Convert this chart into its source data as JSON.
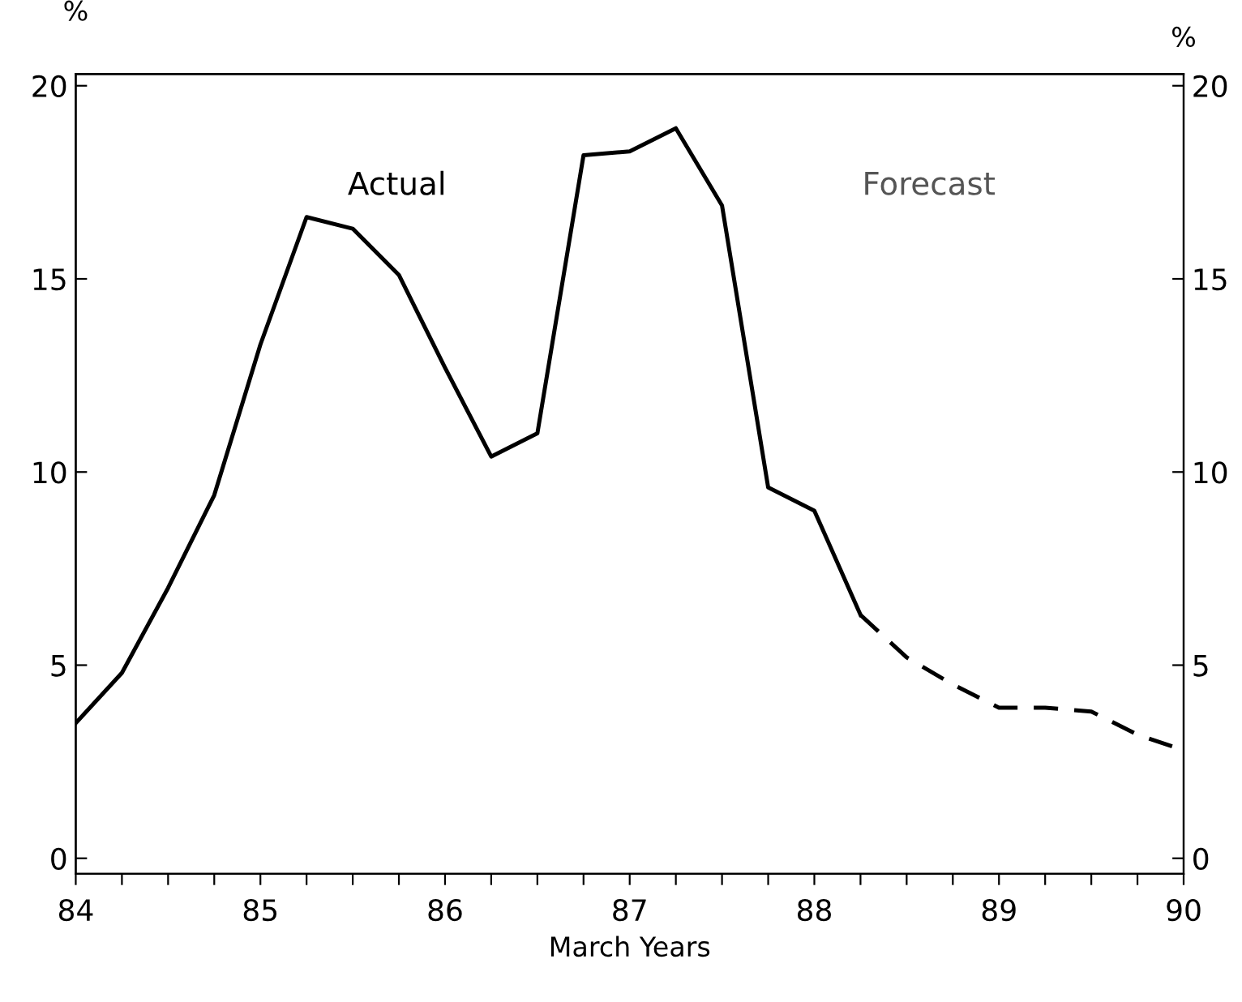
{
  "chart_data": {
    "type": "line",
    "xlabel": "March Years",
    "ylabel": "%",
    "y2label": "%",
    "annotations": [
      "Actual",
      "Forecast"
    ],
    "xlim": [
      84,
      90
    ],
    "xticks": [
      84,
      {
        "value": 84.25,
        "label": null
      },
      {
        "value": 84.5,
        "label": null
      },
      {
        "value": 84.75,
        "label": null
      },
      85,
      {
        "value": 85.25,
        "label": null
      },
      {
        "value": 85.5,
        "label": null
      },
      {
        "value": 85.75,
        "label": null
      },
      86,
      {
        "value": 86.25,
        "label": null
      },
      {
        "value": 86.5,
        "label": null
      },
      {
        "value": 86.75,
        "label": null
      },
      87,
      {
        "value": 87.25,
        "label": null
      },
      {
        "value": 87.5,
        "label": null
      },
      {
        "value": 87.75,
        "label": null
      },
      88,
      {
        "value": 88.25,
        "label": null
      },
      {
        "value": 88.5,
        "label": null
      },
      {
        "value": 88.75,
        "label": null
      },
      89,
      {
        "value": 89.25,
        "label": null
      },
      {
        "value": 89.5,
        "label": null
      },
      {
        "value": 89.75,
        "label": null
      },
      90
    ],
    "ylim": [
      -0.4,
      20.3
    ],
    "yticks": [
      0,
      5,
      10,
      15,
      20
    ],
    "y2lim": [
      -0.4,
      20.3
    ],
    "y2ticks": [
      0,
      5,
      10,
      15,
      20
    ],
    "grid": false,
    "legend": false,
    "series": [
      {
        "color": "#000000",
        "line_style": "solid",
        "x": [
          84,
          84.25,
          84.5,
          84.75,
          85,
          85.25,
          85.5,
          85.75,
          86,
          86.25,
          86.5,
          86.75,
          87,
          87.25,
          87.5,
          87.75,
          88,
          88.25
        ],
        "values": [
          3.5,
          4.8,
          7.0,
          9.4,
          13.3,
          16.6,
          16.3,
          15.1,
          12.7,
          10.4,
          11.0,
          18.2,
          18.3,
          18.9,
          16.9,
          9.6,
          9.0,
          6.3
        ]
      },
      {
        "color": "#000000",
        "line_style": "dashed",
        "x": [
          88.25,
          88.5,
          88.75,
          89,
          89.25,
          89.5,
          89.75,
          90
        ],
        "values": [
          6.3,
          5.2,
          4.5,
          3.9,
          3.9,
          3.8,
          3.2,
          2.8
        ]
      }
    ]
  }
}
